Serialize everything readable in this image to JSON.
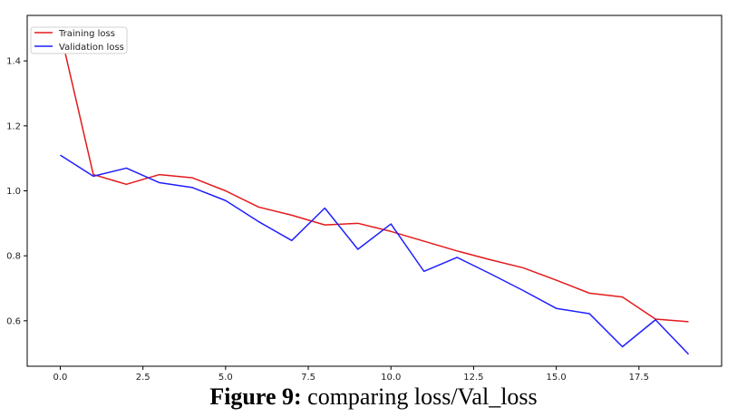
{
  "chart_data": {
    "type": "line",
    "x": [
      0,
      1,
      2,
      3,
      4,
      5,
      6,
      7,
      8,
      9,
      10,
      11,
      12,
      13,
      14,
      15,
      16,
      17,
      18,
      19
    ],
    "series": [
      {
        "name": "Training loss",
        "color": "#e41a1c",
        "values": [
          1.49,
          1.05,
          1.02,
          1.05,
          1.04,
          1.0,
          0.95,
          0.925,
          0.895,
          0.9,
          0.875,
          0.845,
          0.815,
          0.788,
          0.763,
          0.725,
          0.685,
          0.673,
          0.605,
          0.597
        ]
      },
      {
        "name": "Validation loss",
        "color": "#1f1fff",
        "values": [
          1.11,
          1.045,
          1.07,
          1.025,
          1.01,
          0.97,
          0.905,
          0.847,
          0.947,
          0.82,
          0.898,
          0.752,
          0.795,
          0.745,
          0.693,
          0.638,
          0.622,
          0.52,
          0.603,
          0.497
        ]
      }
    ],
    "xlim": [
      -1,
      20
    ],
    "ylim": [
      0.46,
      1.54
    ],
    "xticks": [
      "0.0",
      "2.5",
      "5.0",
      "7.5",
      "10.0",
      "12.5",
      "15.0",
      "17.5"
    ],
    "yticks": [
      "0.6",
      "0.8",
      "1.0",
      "1.2",
      "1.4"
    ],
    "grid": false,
    "legend_position": "top-left"
  },
  "caption": {
    "label": "Figure 9:",
    "text": " comparing loss/Val_loss"
  }
}
